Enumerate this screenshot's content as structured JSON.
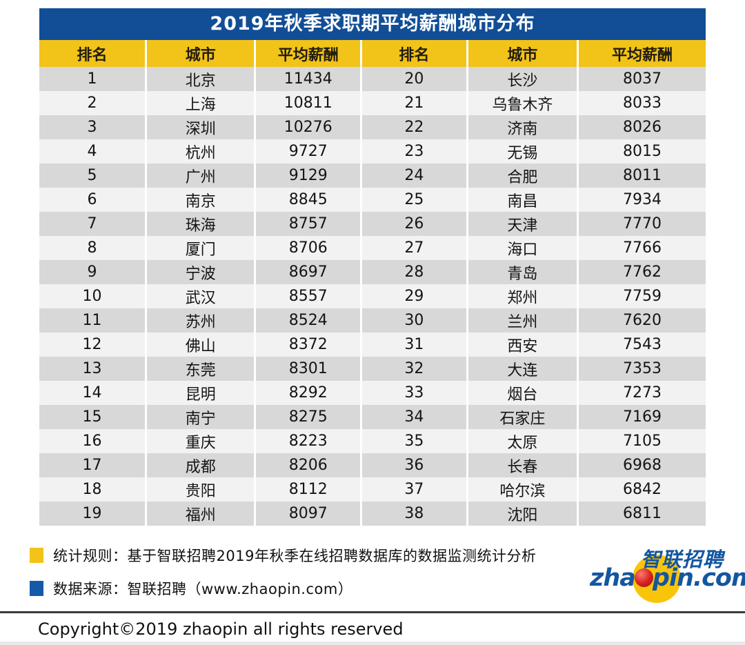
{
  "chart_data": {
    "type": "table",
    "title": "2019年秋季求职期平均薪酬城市分布",
    "columns": [
      "排名",
      "城市",
      "平均薪酬"
    ],
    "rows": [
      [
        1,
        "北京",
        11434
      ],
      [
        2,
        "上海",
        10811
      ],
      [
        3,
        "深圳",
        10276
      ],
      [
        4,
        "杭州",
        9727
      ],
      [
        5,
        "广州",
        9129
      ],
      [
        6,
        "南京",
        8845
      ],
      [
        7,
        "珠海",
        8757
      ],
      [
        8,
        "厦门",
        8706
      ],
      [
        9,
        "宁波",
        8697
      ],
      [
        10,
        "武汉",
        8557
      ],
      [
        11,
        "苏州",
        8524
      ],
      [
        12,
        "佛山",
        8372
      ],
      [
        13,
        "东莞",
        8301
      ],
      [
        14,
        "昆明",
        8292
      ],
      [
        15,
        "南宁",
        8275
      ],
      [
        16,
        "重庆",
        8223
      ],
      [
        17,
        "成都",
        8206
      ],
      [
        18,
        "贵阳",
        8112
      ],
      [
        19,
        "福州",
        8097
      ],
      [
        20,
        "长沙",
        8037
      ],
      [
        21,
        "乌鲁木齐",
        8033
      ],
      [
        22,
        "济南",
        8026
      ],
      [
        23,
        "无锡",
        8015
      ],
      [
        24,
        "合肥",
        8011
      ],
      [
        25,
        "南昌",
        7934
      ],
      [
        26,
        "天津",
        7770
      ],
      [
        27,
        "海口",
        7766
      ],
      [
        28,
        "青岛",
        7762
      ],
      [
        29,
        "郑州",
        7759
      ],
      [
        30,
        "兰州",
        7620
      ],
      [
        31,
        "西安",
        7543
      ],
      [
        32,
        "大连",
        7353
      ],
      [
        33,
        "烟台",
        7273
      ],
      [
        34,
        "石家庄",
        7169
      ],
      [
        35,
        "太原",
        7105
      ],
      [
        36,
        "长春",
        6968
      ],
      [
        37,
        "哈尔滨",
        6842
      ],
      [
        38,
        "沈阳",
        6811
      ]
    ],
    "layout": {
      "split_columns": 2,
      "rows_per_column": 19,
      "grid": false,
      "legend": "none"
    }
  },
  "notes": [
    {
      "bullet_color": "#F2C318",
      "text": "统计规则：基于智联招聘2019年秋季在线招聘数据库的数据监测统计分析"
    },
    {
      "bullet_color": "#1559A9",
      "text": "数据来源：智联招聘（www.zhaopin.com）"
    }
  ],
  "logo": {
    "brand_cn": "智联招聘",
    "brand_en_prefix": "zha",
    "brand_en_suffix": "pin.com"
  },
  "copyright": "Copyright©2019 zhaopin all rights reserved",
  "colors": {
    "title_bar_blue": "#114E96",
    "header_yellow": "#F2C318",
    "row_gray": "#D8D8D8",
    "row_light": "#F2F2F2",
    "logo_blue": "#1456A0",
    "logo_yellow": "#F8C50B",
    "logo_red": "#C8191E"
  }
}
